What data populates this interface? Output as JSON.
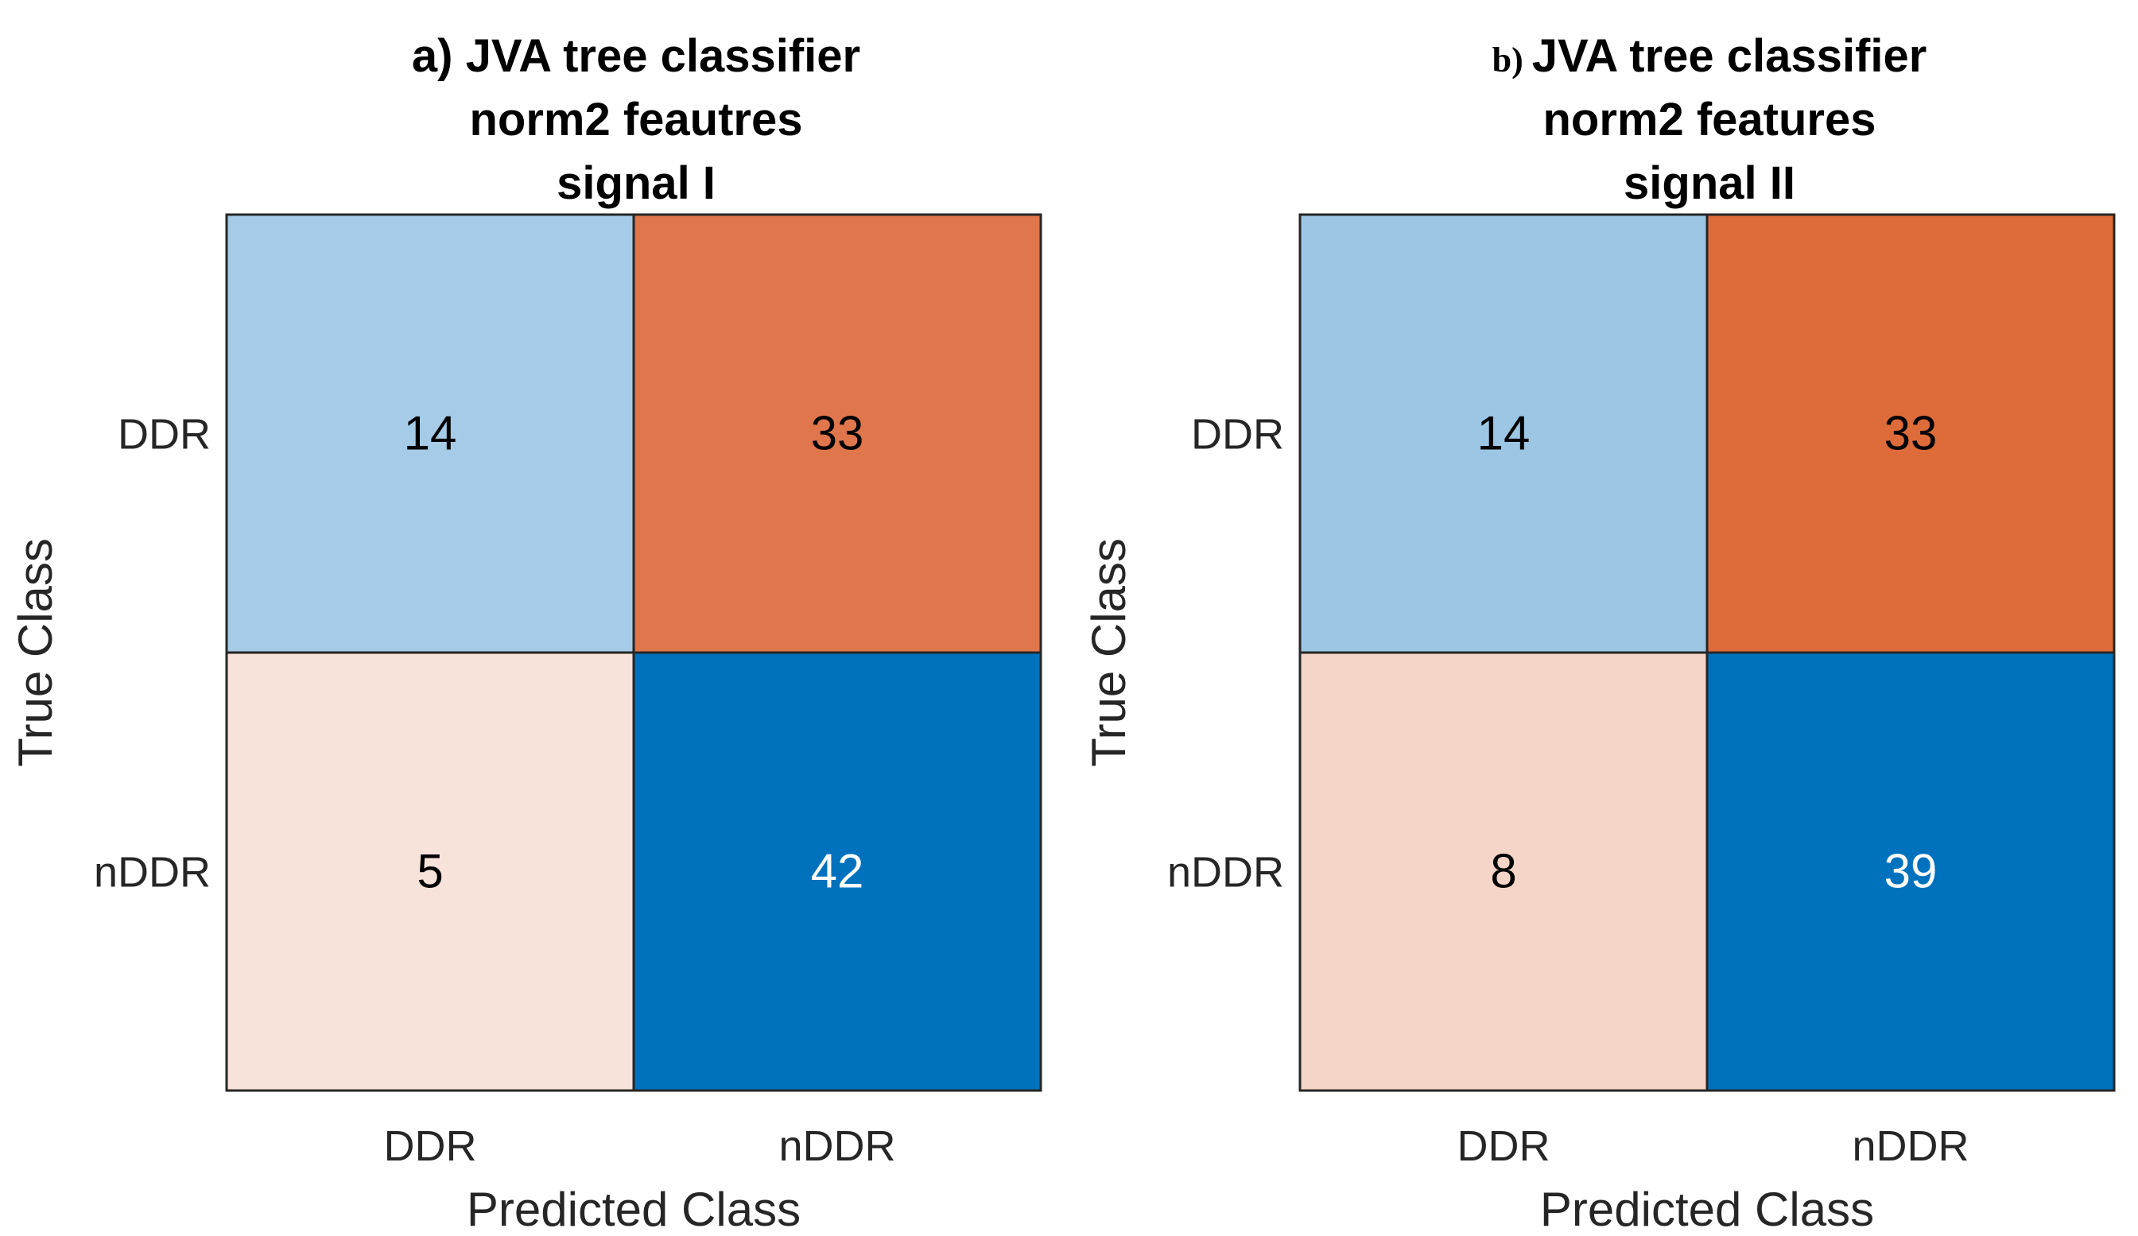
{
  "chart_data": [
    {
      "type": "heatmap",
      "subtype": "confusion-matrix",
      "title_prefix": "a)",
      "title_lines": [
        "JVA tree classifier",
        "norm2 feautres",
        "signal I"
      ],
      "xlabel": "Predicted Class",
      "ylabel": "True Class",
      "x_categories": [
        "DDR",
        "nDDR"
      ],
      "y_categories": [
        "DDR",
        "nDDR"
      ],
      "values": [
        [
          14,
          33
        ],
        [
          5,
          42
        ]
      ],
      "cell_colors": [
        [
          "#a5cbe6",
          "#e0764c"
        ],
        [
          "#f8e3da",
          "#0072bd"
        ]
      ],
      "cell_text_colors": [
        [
          "#000000",
          "#000000"
        ],
        [
          "#000000",
          "#ffffff"
        ]
      ]
    },
    {
      "type": "heatmap",
      "subtype": "confusion-matrix",
      "title_prefix": "b)",
      "title_lines": [
        "JVA tree classifier",
        "norm2 features",
        "signal II"
      ],
      "xlabel": "Predicted Class",
      "ylabel": "True Class",
      "x_categories": [
        "DDR",
        "nDDR"
      ],
      "y_categories": [
        "DDR",
        "nDDR"
      ],
      "values": [
        [
          14,
          33
        ],
        [
          8,
          39
        ]
      ],
      "cell_colors": [
        [
          "#9cc6e4",
          "#de6b3a"
        ],
        [
          "#f5d5c7",
          "#0072bd"
        ]
      ],
      "cell_text_colors": [
        [
          "#000000",
          "#000000"
        ],
        [
          "#000000",
          "#ffffff"
        ]
      ]
    }
  ]
}
